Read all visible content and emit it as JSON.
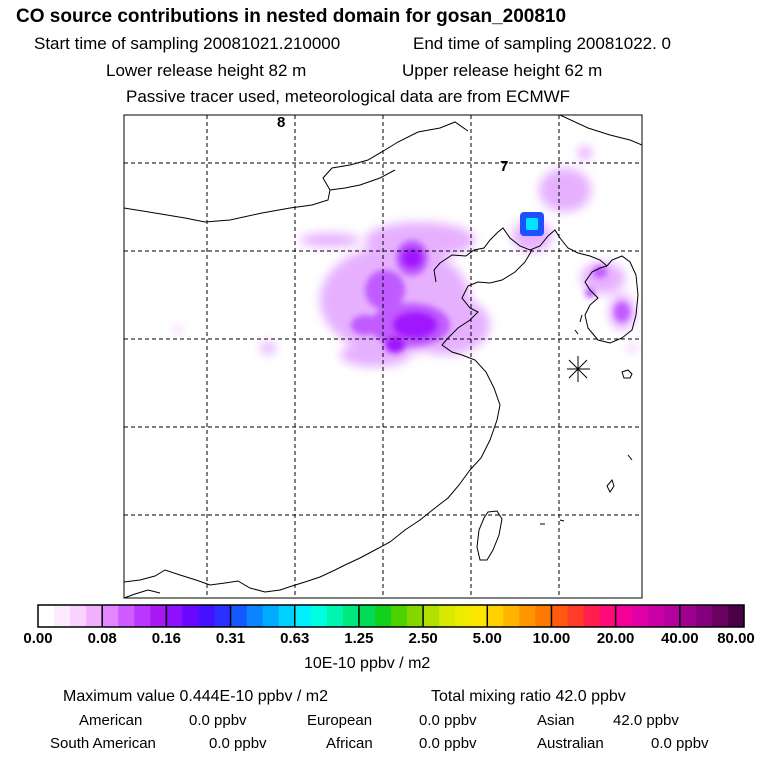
{
  "header": {
    "title": "CO  source contributions in nested domain for gosan_200810",
    "start_label": "Start time of sampling 20081021.210000",
    "end_label": "End time of sampling 20081022.     0",
    "lower_label": "Lower release height   82 m",
    "upper_label": "Upper release height   62 m",
    "tracer_label": "Passive tracer used, meteorological data are from ECMWF"
  },
  "map": {
    "labels": [
      "8",
      "7"
    ],
    "receptor": "gosan",
    "colors": {
      "light": "#e6b0ff",
      "mid": "#c05cff",
      "strong": "#a018ff",
      "peak_edge": "#1e50ff",
      "peak": "#00e6ff"
    }
  },
  "colorbar": {
    "ticks": [
      "0.00",
      "0.08",
      "0.16",
      "0.31",
      "0.63",
      "1.25",
      "2.50",
      "5.00",
      "10.00",
      "20.00",
      "40.00",
      "80.00"
    ],
    "unit": "10E-10 ppbv / m2",
    "colors": [
      "#ffffff",
      "#fdecff",
      "#f9d2ff",
      "#f2b0ff",
      "#e386ff",
      "#d05cff",
      "#bb36ff",
      "#a818f5",
      "#8e10ff",
      "#6a08ff",
      "#4410ff",
      "#2a30ff",
      "#1458ff",
      "#0a84ff",
      "#00aaff",
      "#00d2ff",
      "#00f0ff",
      "#00ffe0",
      "#00f5b0",
      "#00e880",
      "#00dc58",
      "#14d01e",
      "#4cd200",
      "#84d800",
      "#b2e000",
      "#d8e800",
      "#f0ec00",
      "#ffe600",
      "#ffd200",
      "#ffb400",
      "#ff9600",
      "#ff7800",
      "#ff5a10",
      "#ff3c28",
      "#ff1e4c",
      "#ff0a78",
      "#f50096",
      "#e000a6",
      "#cc00a8",
      "#b4009e",
      "#9e0090",
      "#84007e",
      "#6a0060",
      "#4a0044"
    ]
  },
  "stats": {
    "max_text": "Maximum value  0.444E-10 ppbv / m2",
    "total_text": "Total mixing ratio       42.0 ppbv",
    "regions": [
      {
        "name": "American",
        "value": "0.0 ppbv"
      },
      {
        "name": "European",
        "value": "0.0 ppbv"
      },
      {
        "name": "Asian",
        "value": "42.0 ppbv"
      },
      {
        "name": "South American",
        "value": "0.0 ppbv"
      },
      {
        "name": "African",
        "value": "0.0 ppbv"
      },
      {
        "name": "Australian",
        "value": "0.0 ppbv"
      }
    ]
  }
}
